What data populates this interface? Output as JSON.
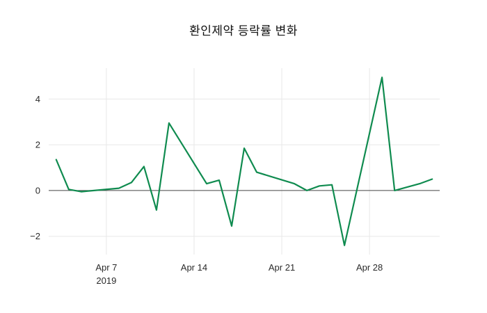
{
  "page": {
    "background_color": "#ffffff"
  },
  "chart_data": {
    "type": "line",
    "title": "환인제약 등락률 변화",
    "xlabel": "",
    "ylabel": "",
    "legend": "none",
    "grid": true,
    "line_color": "#0f8b4f",
    "grid_color": "#e8e8e8",
    "zero_line_color": "#444444",
    "tick_label_color": "#2a2a2a",
    "title_color": "#111111",
    "ylim": [
      -2.8,
      5.35
    ],
    "x": [
      "2019-04-03",
      "2019-04-04",
      "2019-04-05",
      "2019-04-08",
      "2019-04-09",
      "2019-04-10",
      "2019-04-11",
      "2019-04-12",
      "2019-04-15",
      "2019-04-16",
      "2019-04-17",
      "2019-04-18",
      "2019-04-19",
      "2019-04-22",
      "2019-04-23",
      "2019-04-24",
      "2019-04-25",
      "2019-04-26",
      "2019-04-29",
      "2019-04-30",
      "2019-05-02",
      "2019-05-03"
    ],
    "values": [
      1.35,
      0.05,
      -0.05,
      0.1,
      0.35,
      1.05,
      -0.85,
      2.95,
      0.3,
      0.45,
      -1.55,
      1.85,
      0.8,
      0.3,
      0.0,
      0.2,
      0.25,
      -2.4,
      4.95,
      0.0,
      0.3,
      0.5
    ],
    "y_ticks": [
      {
        "value": -2,
        "label": "−2"
      },
      {
        "value": 0,
        "label": "0"
      },
      {
        "value": 2,
        "label": "2"
      },
      {
        "value": 4,
        "label": "4"
      }
    ],
    "x_ticks": [
      {
        "date": "2019-04-07",
        "label": "Apr 7",
        "year_label": "2019"
      },
      {
        "date": "2019-04-14",
        "label": "Apr 14"
      },
      {
        "date": "2019-04-21",
        "label": "Apr 21"
      },
      {
        "date": "2019-04-28",
        "label": "Apr 28"
      }
    ]
  }
}
